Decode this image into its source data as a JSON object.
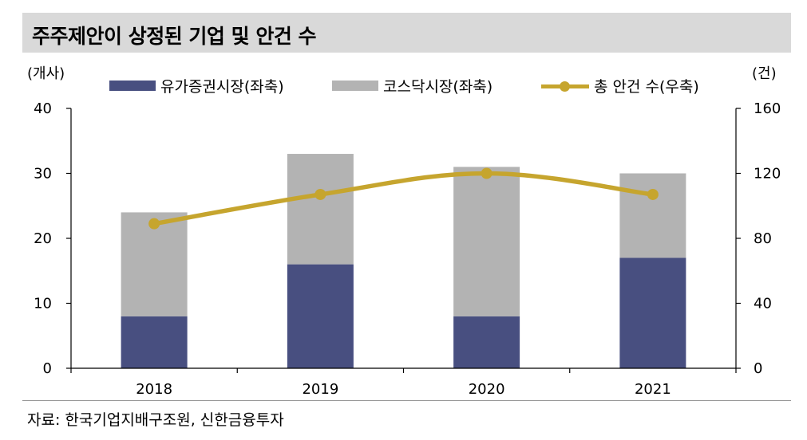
{
  "title": "주주제안이 상정된 기업 및 안건 수",
  "unit_left": "(개사)",
  "unit_right": "(건)",
  "legend": {
    "kospi": "유가증권시장(좌축)",
    "kosdaq": "코스닥시장(좌축)",
    "total": "총 안건 수(우축)"
  },
  "source": "자료: 한국기업지배구조원, 신한금융투자",
  "colors": {
    "kospi": "#484f80",
    "kosdaq": "#b3b3b3",
    "total": "#c6a52e"
  },
  "chart_data": {
    "type": "bar",
    "stacked": true,
    "categories": [
      "2018",
      "2019",
      "2020",
      "2021"
    ],
    "series": [
      {
        "name": "유가증권시장(좌축)",
        "axis": "left",
        "values": [
          8,
          16,
          8,
          17
        ]
      },
      {
        "name": "코스닥시장(좌축)",
        "axis": "left",
        "values": [
          16,
          17,
          23,
          13
        ]
      },
      {
        "name": "총 안건 수(우축)",
        "axis": "right",
        "type": "line",
        "values": [
          89,
          107,
          120,
          107
        ]
      }
    ],
    "ylim_left": [
      0,
      40
    ],
    "yticks_left": [
      "0",
      "10",
      "20",
      "30",
      "40"
    ],
    "ylim_right": [
      0,
      160
    ],
    "yticks_right": [
      "0",
      "40",
      "80",
      "120",
      "160"
    ],
    "legend_position": "top"
  }
}
